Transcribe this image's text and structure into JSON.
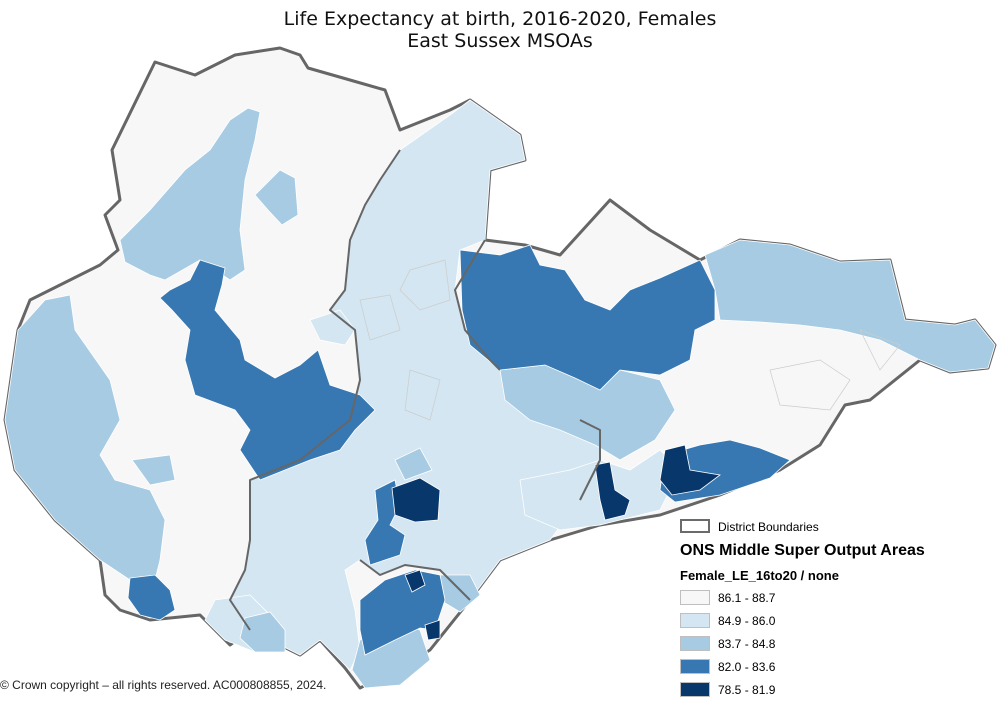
{
  "title": {
    "line1": "Life Expectancy at birth, 2016-2020, Females",
    "line2": "East Sussex  MSOAs"
  },
  "copyright": "© Crown copyright – all rights reserved. AC000808855, 2024.",
  "legend": {
    "boundary_label": "District Boundaries",
    "heading": "ONS Middle Super Output Areas",
    "field": "Female_LE_16to20 / none",
    "classes": [
      {
        "label": "86.1 - 88.7",
        "color": "#f7f7f7"
      },
      {
        "label": "84.9 - 86.0",
        "color": "#d3e6f1"
      },
      {
        "label": "83.7 - 84.8",
        "color": "#a6cbe3"
      },
      {
        "label": "82.0 - 83.6",
        "color": "#3878b2"
      },
      {
        "label": "78.5 - 81.9",
        "color": "#08386b"
      }
    ]
  },
  "colors": {
    "boundary": "#666666",
    "background": "#ffffff"
  }
}
